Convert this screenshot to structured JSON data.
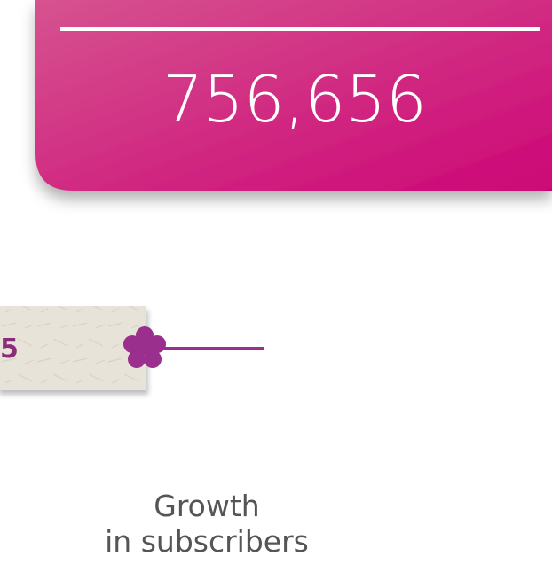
{
  "card": {
    "value": "756,656"
  },
  "label": {
    "text": "5"
  },
  "caption": {
    "lines": [
      "Growth",
      "in subscribers"
    ]
  }
}
